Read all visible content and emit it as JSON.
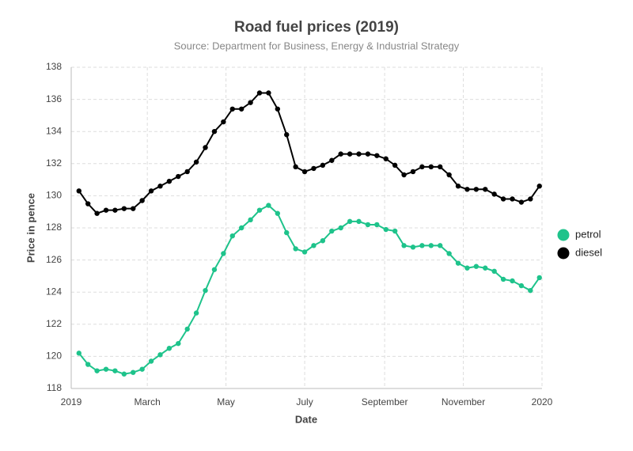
{
  "chart_data": {
    "type": "line",
    "title": "Road fuel prices (2019)",
    "subtitle": "Source: Department for Business, Energy & Industrial Strategy",
    "x_label": "Date",
    "y_label": "Price in pence",
    "x": [
      "2019-01-07",
      "2019-01-14",
      "2019-01-21",
      "2019-01-28",
      "2019-02-04",
      "2019-02-11",
      "2019-02-18",
      "2019-02-25",
      "2019-03-04",
      "2019-03-11",
      "2019-03-18",
      "2019-03-25",
      "2019-04-01",
      "2019-04-08",
      "2019-04-15",
      "2019-04-22",
      "2019-04-29",
      "2019-05-06",
      "2019-05-13",
      "2019-05-20",
      "2019-05-27",
      "2019-06-03",
      "2019-06-10",
      "2019-06-17",
      "2019-06-24",
      "2019-07-01",
      "2019-07-08",
      "2019-07-15",
      "2019-07-22",
      "2019-07-29",
      "2019-08-05",
      "2019-08-12",
      "2019-08-19",
      "2019-08-26",
      "2019-09-02",
      "2019-09-09",
      "2019-09-16",
      "2019-09-23",
      "2019-09-30",
      "2019-10-07",
      "2019-10-14",
      "2019-10-21",
      "2019-10-28",
      "2019-11-04",
      "2019-11-11",
      "2019-11-18",
      "2019-11-25",
      "2019-12-02",
      "2019-12-09",
      "2019-12-16",
      "2019-12-23",
      "2019-12-30"
    ],
    "series": [
      {
        "name": "petrol",
        "color": "#1ec38b",
        "values": [
          120.2,
          119.5,
          119.1,
          119.2,
          119.1,
          118.9,
          119.0,
          119.2,
          119.7,
          120.1,
          120.5,
          120.8,
          121.7,
          122.7,
          124.1,
          125.4,
          126.4,
          127.5,
          128.0,
          128.5,
          129.1,
          129.4,
          128.9,
          127.7,
          126.7,
          126.5,
          126.9,
          127.2,
          127.8,
          128.0,
          128.4,
          128.4,
          128.2,
          128.2,
          127.9,
          127.8,
          126.9,
          126.8,
          126.9,
          126.9,
          126.9,
          126.4,
          125.8,
          125.5,
          125.6,
          125.5,
          125.3,
          124.8,
          124.7,
          124.4,
          124.1,
          124.9
        ]
      },
      {
        "name": "diesel",
        "color": "#000000",
        "values": [
          130.3,
          129.5,
          128.9,
          129.1,
          129.1,
          129.2,
          129.2,
          129.7,
          130.3,
          130.6,
          130.9,
          131.2,
          131.5,
          132.1,
          133.0,
          134.0,
          134.6,
          135.4,
          135.4,
          135.8,
          136.4,
          136.4,
          135.4,
          133.8,
          131.8,
          131.5,
          131.7,
          131.9,
          132.2,
          132.6,
          132.6,
          132.6,
          132.6,
          132.5,
          132.3,
          131.9,
          131.3,
          131.5,
          131.8,
          131.8,
          131.8,
          131.3,
          130.6,
          130.4,
          130.4,
          130.4,
          130.1,
          129.8,
          129.8,
          129.6,
          129.8,
          130.6
        ]
      }
    ],
    "xlim": [
      "2019-01-01",
      "2020-01-01"
    ],
    "xticks": [
      {
        "value": "2019-01-01",
        "label": "2019"
      },
      {
        "value": "2019-03-01",
        "label": "March"
      },
      {
        "value": "2019-05-01",
        "label": "May"
      },
      {
        "value": "2019-07-01",
        "label": "July"
      },
      {
        "value": "2019-09-01",
        "label": "September"
      },
      {
        "value": "2019-11-01",
        "label": "November"
      },
      {
        "value": "2020-01-01",
        "label": "2020"
      }
    ],
    "ylim": [
      118,
      138
    ],
    "yticks": [
      118,
      120,
      122,
      124,
      126,
      128,
      130,
      132,
      134,
      136,
      138
    ],
    "grid": true,
    "legend": "right"
  }
}
